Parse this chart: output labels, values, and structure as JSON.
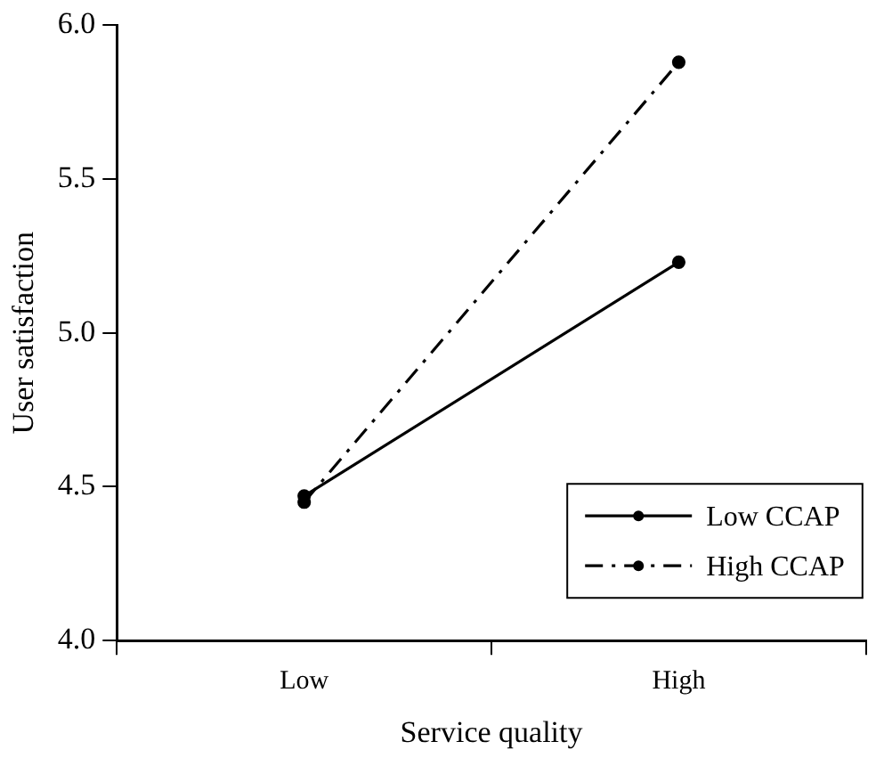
{
  "chart_data": {
    "type": "line",
    "xlabel": "Service quality",
    "ylabel": "User satisfaction",
    "categories": [
      "Low",
      "High"
    ],
    "series": [
      {
        "name": "Low CCAP",
        "color": "#000000",
        "values": [
          4.47,
          5.23
        ],
        "line_style": "solid"
      },
      {
        "name": "High CCAP",
        "color": "#000000",
        "values": [
          4.45,
          5.88
        ],
        "line_style": "dashdot"
      }
    ],
    "ylim": [
      4.0,
      6.0
    ],
    "yticks": [
      {
        "value": 4.0,
        "label": "4.0"
      },
      {
        "value": 4.5,
        "label": "4.5"
      },
      {
        "value": 5.0,
        "label": "5.0"
      },
      {
        "value": 5.5,
        "label": "5.5"
      },
      {
        "value": 6.0,
        "label": "6.0"
      }
    ],
    "grid": false,
    "legend": "bottom right",
    "marker": "circle"
  }
}
